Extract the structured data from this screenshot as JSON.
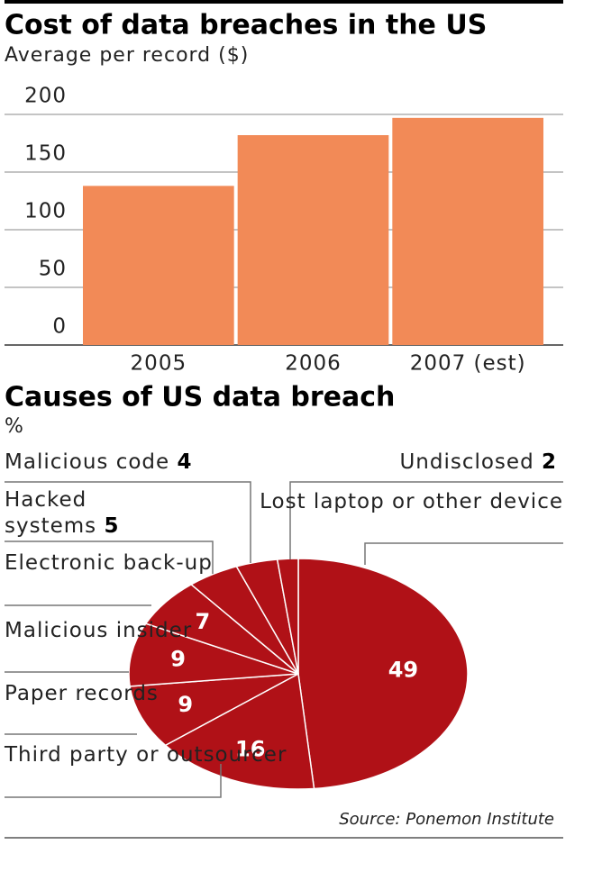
{
  "chart_data": [
    {
      "type": "bar",
      "title": "Cost of data breaches in the US",
      "subtitle": "Average per record ($)",
      "categories": [
        "2005",
        "2006",
        "2007 (est)"
      ],
      "values": [
        138,
        182,
        197
      ],
      "color": "#f28a57",
      "ylim": [
        0,
        200
      ],
      "yticks": [
        0,
        50,
        100,
        150,
        200
      ],
      "grid": true
    },
    {
      "type": "pie",
      "title": "Causes of US data breach",
      "subtitle": "%",
      "categories": [
        "Lost laptop or other device",
        "Third party or outsourcer",
        "Paper records",
        "Malicious insider",
        "Electronic back-up",
        "Hacked systems",
        "Malicious code",
        "Undisclosed"
      ],
      "values": [
        49,
        16,
        9,
        9,
        7,
        5,
        4,
        2
      ],
      "color": "#b01117"
    }
  ],
  "source": "Source: Ponemon Institute"
}
